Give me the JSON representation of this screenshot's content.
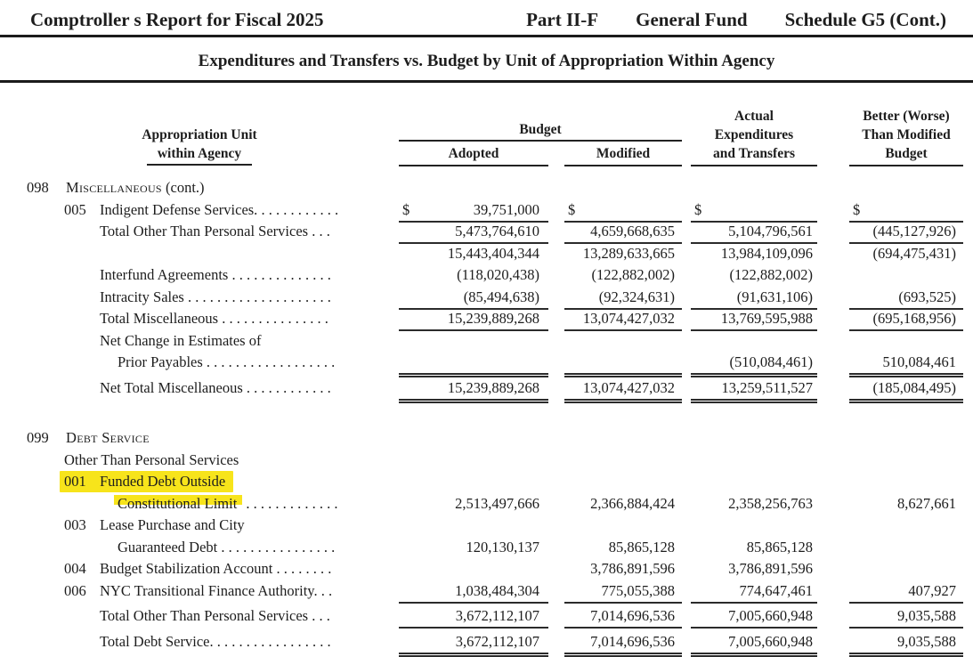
{
  "page": {
    "title_left": "Comptroller s Report for Fiscal 2025",
    "title_part": "Part II-F",
    "title_fund": "General Fund",
    "title_schedule": "Schedule G5 (Cont.)",
    "subtitle": "Expenditures and Transfers vs. Budget by Unit of Appropriation Within Agency"
  },
  "columns": {
    "appropriation_line1": "Appropriation Unit",
    "appropriation_line2": "within Agency",
    "budget_group": "Budget",
    "adopted": "Adopted",
    "modified": "Modified",
    "actual_line1": "Actual",
    "actual_line2": "Expenditures",
    "actual_line3": "and Transfers",
    "better_line1": "Better (Worse)",
    "better_line2": "Than Modified",
    "better_line3": "Budget"
  },
  "highlight_color": "#f7e41b",
  "table": {
    "rows": [
      {
        "indent": "s",
        "code": "098",
        "label": "Miscellaneous",
        "smallcaps": true,
        "suffix": " (cont.)"
      },
      {
        "indent": "c",
        "code": "005",
        "label": "Indigent Defense Services.",
        "dots": " . . . . . . . . . . .",
        "dollar": true,
        "values": [
          "39,751,000",
          "",
          "",
          ""
        ],
        "rule": "single"
      },
      {
        "indent": "p",
        "label": "Total Other Than Personal Services",
        "dots": " . . .",
        "values": [
          "5,473,764,610",
          "4,659,668,635",
          "5,104,796,561",
          "(445,127,926)"
        ],
        "rule": "single"
      },
      {
        "indent": "p",
        "label": "",
        "values": [
          "15,443,404,344",
          "13,289,633,665",
          "13,984,109,096",
          "(694,475,431)"
        ]
      },
      {
        "indent": "p",
        "label": "Interfund Agreements",
        "dots": " . . . . . . . . . . . . . .",
        "values": [
          "(118,020,438)",
          "(122,882,002)",
          "(122,882,002)",
          ""
        ]
      },
      {
        "indent": "p",
        "label": "Intracity Sales",
        "dots": " . . . . . . . . . . . . . . . . . . . .",
        "values": [
          "(85,494,638)",
          "(92,324,631)",
          "(91,631,106)",
          "(693,525)"
        ],
        "rule": "single"
      },
      {
        "indent": "p",
        "label": "Total Miscellaneous",
        "dots": "  . . . . . . . . . . . . . . .",
        "values": [
          "15,239,889,268",
          "13,074,427,032",
          "13,769,595,988",
          "(695,168,956)"
        ],
        "rule": "single"
      },
      {
        "indent": "p",
        "label": "Net Change in Estimates of"
      },
      {
        "indent": "p2",
        "label": "Prior Payables",
        "dots": " . . . . . . . . . . . . . . . . . .",
        "values": [
          "",
          "",
          "(510,084,461)",
          "510,084,461"
        ],
        "rule": "double"
      },
      {
        "indent": "p",
        "label": "Net Total Miscellaneous",
        "dots": " . . . . . . . . . . . .",
        "values": [
          "15,239,889,268",
          "13,074,427,032",
          "13,259,511,527",
          "(185,084,495)"
        ],
        "rule": "double",
        "gap": "small"
      },
      {
        "indent": "s",
        "code": "099",
        "label": "Debt Service",
        "smallcaps": true,
        "gap": "section"
      },
      {
        "indent": "sub",
        "label": "Other Than Personal Services"
      },
      {
        "indent": "c",
        "code": "001",
        "label": "Funded Debt Outside",
        "highlight": "full"
      },
      {
        "indent": "p2",
        "label": "Constitutional Limit",
        "dots": " . . . . . . . . . . . . .",
        "values": [
          "2,513,497,666",
          "2,366,884,424",
          "2,358,256,763",
          "8,627,661"
        ],
        "highlight": "partial"
      },
      {
        "indent": "c",
        "code": "003",
        "label": "Lease Purchase and City"
      },
      {
        "indent": "p2",
        "label": "Guaranteed Debt",
        "dots": " . . . . . . . . . . . . . . . .",
        "values": [
          "120,130,137",
          "85,865,128",
          "85,865,128",
          ""
        ]
      },
      {
        "indent": "c",
        "code": "004",
        "label": "Budget Stabilization Account",
        "dots": " . . . . . . . .",
        "values": [
          "",
          "3,786,891,596",
          "3,786,891,596",
          ""
        ]
      },
      {
        "indent": "c",
        "code": "006",
        "label": "NYC Transitional Finance Authority.",
        "dots": " . .",
        "values": [
          "1,038,484,304",
          "775,055,388",
          "774,647,461",
          "407,927"
        ],
        "rule": "single"
      },
      {
        "indent": "p",
        "label": "Total Other Than Personal Services",
        "dots": " . . .",
        "values": [
          "3,672,112,107",
          "7,014,696,536",
          "7,005,660,948",
          "9,035,588"
        ],
        "rule": "single",
        "gap": "small"
      },
      {
        "indent": "p",
        "label": "Total Debt Service.",
        "dots": " . . . . . . . . . . . . . . . .",
        "values": [
          "3,672,112,107",
          "7,014,696,536",
          "7,005,660,948",
          "9,035,588"
        ],
        "rule": "double",
        "gap": "small"
      }
    ]
  }
}
